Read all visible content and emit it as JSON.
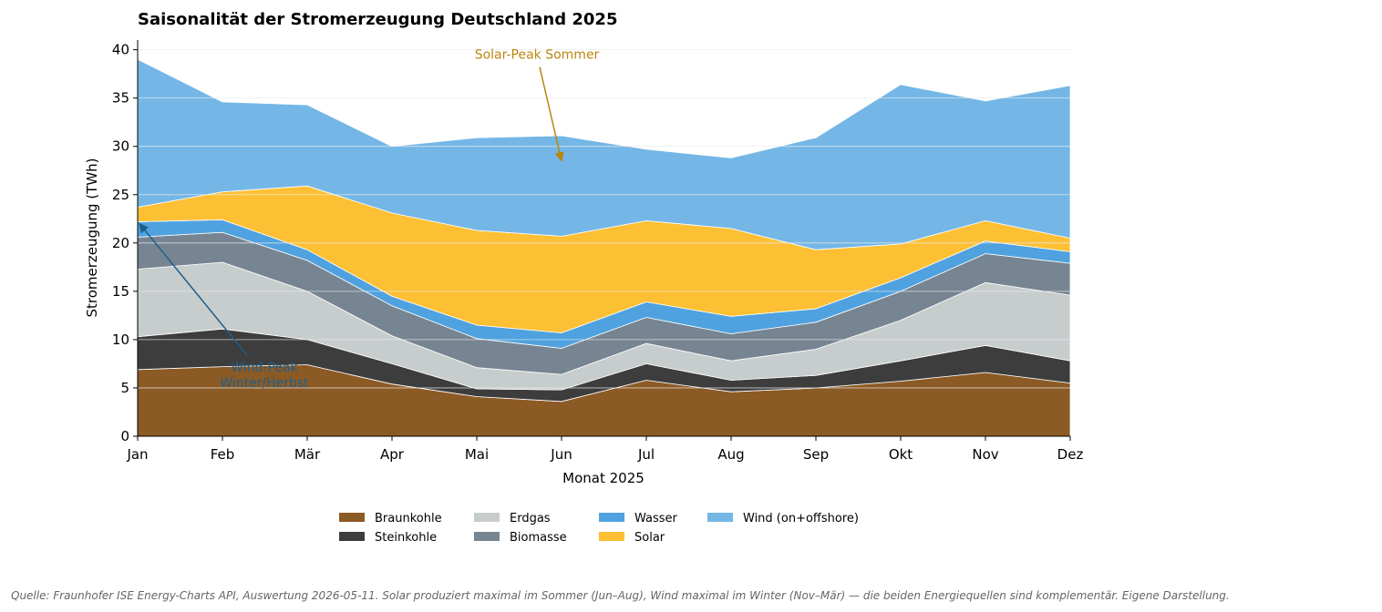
{
  "chart_data": {
    "type": "area",
    "stacked": true,
    "title": "Saisonalität der Stromerzeugung Deutschland 2025",
    "xlabel": "Monat 2025",
    "ylabel": "Stromerzeugung (TWh)",
    "ylim": [
      0,
      41
    ],
    "yticks": [
      "0",
      "5",
      "10",
      "15",
      "20",
      "25",
      "30",
      "35",
      "40"
    ],
    "categories": [
      "Jan",
      "Feb",
      "Mär",
      "Apr",
      "Mai",
      "Jun",
      "Jul",
      "Aug",
      "Sep",
      "Okt",
      "Nov",
      "Dez"
    ],
    "grid": "horizontal",
    "legend_position": "bottom",
    "series": [
      {
        "name": "Braunkohle",
        "color": "#8c5a25",
        "values": [
          6.9,
          7.2,
          7.4,
          5.4,
          4.1,
          3.6,
          5.8,
          4.6,
          5.0,
          5.7,
          6.6,
          5.5
        ]
      },
      {
        "name": "Steinkohle",
        "color": "#3d3d3d",
        "values": [
          3.4,
          3.9,
          2.6,
          2.1,
          0.8,
          1.2,
          1.7,
          1.2,
          1.3,
          2.1,
          2.8,
          2.3
        ]
      },
      {
        "name": "Erdgas",
        "color": "#c7cccd",
        "values": [
          7.0,
          6.9,
          5.0,
          2.9,
          2.2,
          1.6,
          2.1,
          2.0,
          2.7,
          4.2,
          6.5,
          6.8
        ]
      },
      {
        "name": "Biomasse",
        "color": "#778592",
        "values": [
          3.3,
          3.1,
          3.2,
          3.1,
          3.0,
          2.7,
          2.7,
          2.8,
          2.8,
          3.0,
          3.0,
          3.3
        ]
      },
      {
        "name": "Wasser",
        "color": "#4fa2df",
        "values": [
          1.6,
          1.3,
          1.1,
          1.0,
          1.4,
          1.6,
          1.6,
          1.8,
          1.4,
          1.4,
          1.3,
          1.2
        ]
      },
      {
        "name": "Solar",
        "color": "#fdc035",
        "values": [
          1.5,
          2.9,
          6.6,
          8.6,
          9.8,
          10.0,
          8.4,
          9.1,
          6.1,
          3.5,
          2.1,
          1.4
        ]
      },
      {
        "name": "Wind (on+offshore)",
        "color": "#74b7e6",
        "values": [
          15.3,
          9.3,
          8.4,
          6.9,
          9.6,
          10.4,
          7.4,
          7.3,
          11.6,
          16.5,
          12.4,
          15.8
        ]
      }
    ],
    "annotations": [
      {
        "text": "Solar-Peak Sommer",
        "month": "Jun",
        "value": 28.5,
        "text_month": "Mai",
        "text_value": 38.5,
        "color": "#b8860b"
      },
      {
        "text_lines": [
          "Wind-Peak",
          "Winter/Herbst"
        ],
        "month": "Jan",
        "value": 22.0,
        "text_month": "Feb",
        "text_value": 6.5,
        "color": "#1f5f8b"
      }
    ]
  },
  "footer": {
    "source": "Quelle: Fraunhofer ISE Energy-Charts API, Auswertung 2026-05-11. Solar produziert maximal im Sommer (Jun–Aug), Wind maximal im Winter (Nov–Mär) — die beiden Energiequellen sind komplementär. Eigene Darstellung."
  }
}
